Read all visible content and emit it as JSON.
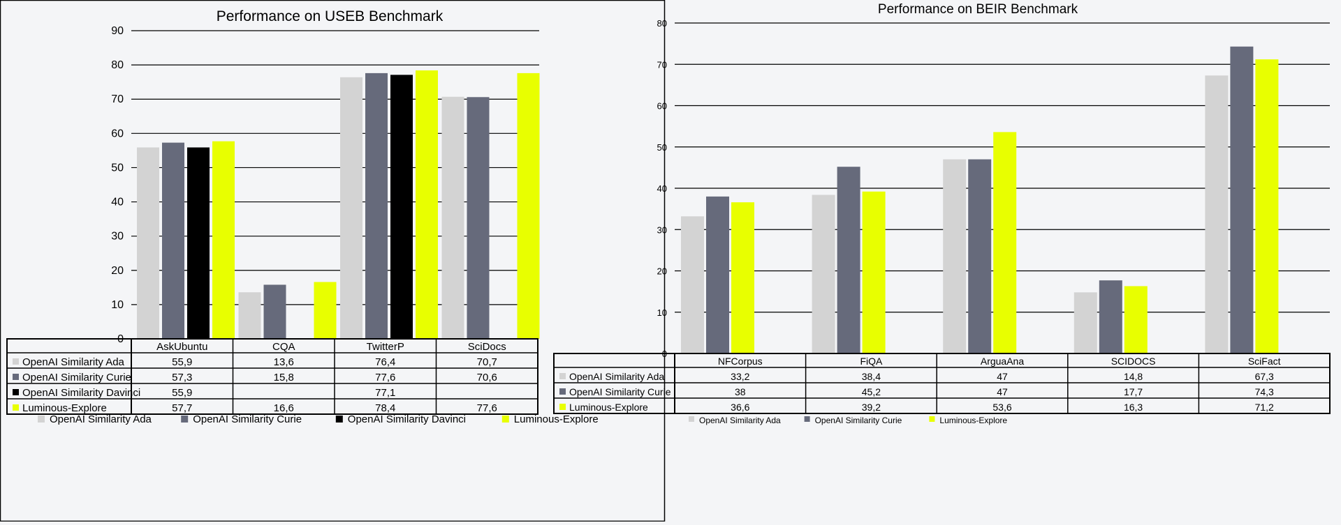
{
  "colors": {
    "series": [
      "#d3d3d3",
      "#666a7b",
      "#000000",
      "#e8ff00"
    ],
    "grid": "#000000",
    "background": "#f4f5f7"
  },
  "chart_data": [
    {
      "type": "bar",
      "title": "Performance on USEB Benchmark",
      "categories": [
        "AskUbuntu",
        "CQA",
        "TwitterP",
        "SciDocs"
      ],
      "ylim": [
        0,
        90
      ],
      "yticks": [
        "0",
        "10",
        "20",
        "30",
        "40",
        "50",
        "60",
        "70",
        "80",
        "90"
      ],
      "grid": true,
      "legend": "bottom",
      "series": [
        {
          "name": "OpenAI Similarity Ada",
          "values": [
            55.9,
            13.6,
            76.4,
            70.7
          ],
          "labels": [
            "55,9",
            "13,6",
            "76,4",
            "70,7"
          ]
        },
        {
          "name": "OpenAI Similarity Curie",
          "values": [
            57.3,
            15.8,
            77.6,
            70.6
          ],
          "labels": [
            "57,3",
            "15,8",
            "77,6",
            "70,6"
          ]
        },
        {
          "name": "OpenAI Similarity Davinci",
          "values": [
            55.9,
            null,
            77.1,
            null
          ],
          "labels": [
            "55,9",
            "",
            "77,1",
            ""
          ]
        },
        {
          "name": "Luminous-Explore",
          "values": [
            57.7,
            16.6,
            78.4,
            77.6
          ],
          "labels": [
            "57,7",
            "16,6",
            "78,4",
            "77,6"
          ]
        }
      ]
    },
    {
      "type": "bar",
      "title": "Performance on BEIR Benchmark",
      "categories": [
        "NFCorpus",
        "FiQA",
        "ArguaAna",
        "SCIDOCS",
        "SciFact"
      ],
      "ylim": [
        0,
        80
      ],
      "yticks": [
        "0",
        "10",
        "20",
        "30",
        "40",
        "50",
        "60",
        "70",
        "80"
      ],
      "grid": true,
      "legend": "bottom",
      "series": [
        {
          "name": "OpenAI Similarity Ada",
          "values": [
            33.2,
            38.4,
            47,
            14.8,
            67.3
          ],
          "labels": [
            "33,2",
            "38,4",
            "47",
            "14,8",
            "67,3"
          ]
        },
        {
          "name": "OpenAI Similarity Curie",
          "values": [
            38,
            45.2,
            47,
            17.7,
            74.3
          ],
          "labels": [
            "38",
            "45,2",
            "47",
            "17,7",
            "74,3"
          ]
        },
        {
          "name": "Luminous-Explore",
          "values": [
            36.6,
            39.2,
            53.6,
            16.3,
            71.2
          ],
          "labels": [
            "36,6",
            "39,2",
            "53,6",
            "16,3",
            "71,2"
          ]
        }
      ]
    }
  ]
}
